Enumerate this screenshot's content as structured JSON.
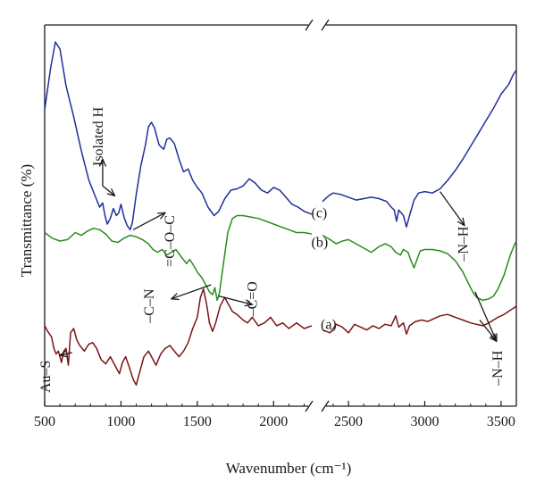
{
  "chart_data": {
    "type": "line",
    "title": "",
    "xlabel": "Wavenumber (cm⁻¹)",
    "ylabel": "Transmittance (%)",
    "xlim": [
      500,
      3600
    ],
    "axis_break": {
      "from": 2250,
      "to": 2330
    },
    "xticks": [
      500,
      1000,
      1500,
      2000,
      2500,
      3000,
      3500
    ],
    "yticks": [],
    "grid": false,
    "legend": "none",
    "series": [
      {
        "name": "(c)",
        "color": "#1f2f9a",
        "points": [
          [
            500,
            14.5
          ],
          [
            540,
            17.5
          ],
          [
            570,
            19.3
          ],
          [
            600,
            18.8
          ],
          [
            640,
            16.2
          ],
          [
            690,
            14.0
          ],
          [
            740,
            11.6
          ],
          [
            790,
            9.5
          ],
          [
            830,
            8.4
          ],
          [
            860,
            7.6
          ],
          [
            880,
            7.9
          ],
          [
            895,
            7.0
          ],
          [
            910,
            6.4
          ],
          [
            930,
            6.8
          ],
          [
            950,
            7.5
          ],
          [
            970,
            7.0
          ],
          [
            985,
            7.2
          ],
          [
            1000,
            7.8
          ],
          [
            1020,
            6.9
          ],
          [
            1040,
            6.3
          ],
          [
            1060,
            6.0
          ],
          [
            1075,
            6.5
          ],
          [
            1100,
            8.5
          ],
          [
            1130,
            10.5
          ],
          [
            1160,
            12.0
          ],
          [
            1180,
            13.3
          ],
          [
            1200,
            13.6
          ],
          [
            1220,
            13.2
          ],
          [
            1250,
            12.0
          ],
          [
            1280,
            11.7
          ],
          [
            1300,
            12.4
          ],
          [
            1320,
            12.5
          ],
          [
            1350,
            12.1
          ],
          [
            1380,
            11.0
          ],
          [
            1410,
            10.1
          ],
          [
            1440,
            10.3
          ],
          [
            1470,
            9.5
          ],
          [
            1500,
            9.0
          ],
          [
            1530,
            8.6
          ],
          [
            1570,
            7.6
          ],
          [
            1610,
            7.0
          ],
          [
            1640,
            7.3
          ],
          [
            1680,
            8.2
          ],
          [
            1720,
            8.8
          ],
          [
            1760,
            8.9
          ],
          [
            1800,
            9.1
          ],
          [
            1840,
            9.6
          ],
          [
            1880,
            9.3
          ],
          [
            1920,
            8.8
          ],
          [
            1960,
            8.6
          ],
          [
            2000,
            9.0
          ],
          [
            2040,
            8.8
          ],
          [
            2080,
            8.3
          ],
          [
            2120,
            7.8
          ],
          [
            2160,
            7.6
          ],
          [
            2200,
            7.3
          ],
          [
            2250,
            7.1
          ],
          [
            2330,
            8.0
          ],
          [
            2370,
            8.4
          ],
          [
            2400,
            8.6
          ],
          [
            2450,
            8.5
          ],
          [
            2500,
            8.3
          ],
          [
            2550,
            8.1
          ],
          [
            2600,
            8.2
          ],
          [
            2650,
            8.3
          ],
          [
            2700,
            8.2
          ],
          [
            2750,
            8.0
          ],
          [
            2780,
            7.6
          ],
          [
            2800,
            7.4
          ],
          [
            2815,
            6.6
          ],
          [
            2830,
            7.4
          ],
          [
            2860,
            7.0
          ],
          [
            2880,
            6.2
          ],
          [
            2900,
            7.0
          ],
          [
            2930,
            8.1
          ],
          [
            2960,
            8.6
          ],
          [
            3000,
            8.7
          ],
          [
            3050,
            8.6
          ],
          [
            3100,
            8.9
          ],
          [
            3150,
            9.5
          ],
          [
            3200,
            10.2
          ],
          [
            3250,
            11.0
          ],
          [
            3300,
            11.9
          ],
          [
            3350,
            12.8
          ],
          [
            3400,
            13.7
          ],
          [
            3450,
            14.6
          ],
          [
            3500,
            15.6
          ],
          [
            3550,
            16.3
          ],
          [
            3580,
            17.0
          ],
          [
            3600,
            17.3
          ]
        ]
      },
      {
        "name": "(b)",
        "color": "#2a8c1a",
        "points": [
          [
            500,
            5.8
          ],
          [
            550,
            5.4
          ],
          [
            600,
            5.2
          ],
          [
            650,
            5.3
          ],
          [
            700,
            5.8
          ],
          [
            740,
            5.6
          ],
          [
            780,
            5.9
          ],
          [
            820,
            6.1
          ],
          [
            860,
            6.0
          ],
          [
            900,
            5.7
          ],
          [
            940,
            5.2
          ],
          [
            980,
            5.1
          ],
          [
            1020,
            5.4
          ],
          [
            1060,
            5.6
          ],
          [
            1100,
            5.5
          ],
          [
            1140,
            5.3
          ],
          [
            1180,
            5.0
          ],
          [
            1210,
            4.6
          ],
          [
            1240,
            4.4
          ],
          [
            1270,
            4.6
          ],
          [
            1300,
            4.2
          ],
          [
            1330,
            4.4
          ],
          [
            1360,
            4.6
          ],
          [
            1400,
            4.0
          ],
          [
            1430,
            3.6
          ],
          [
            1450,
            3.9
          ],
          [
            1480,
            3.4
          ],
          [
            1500,
            3.0
          ],
          [
            1530,
            2.6
          ],
          [
            1560,
            2.0
          ],
          [
            1580,
            1.6
          ],
          [
            1600,
            1.4
          ],
          [
            1615,
            1.9
          ],
          [
            1630,
            1.0
          ],
          [
            1645,
            1.5
          ],
          [
            1670,
            3.5
          ],
          [
            1700,
            5.8
          ],
          [
            1730,
            6.8
          ],
          [
            1760,
            7.0
          ],
          [
            1800,
            7.0
          ],
          [
            1850,
            6.9
          ],
          [
            1900,
            6.8
          ],
          [
            1950,
            6.6
          ],
          [
            2000,
            6.4
          ],
          [
            2050,
            6.2
          ],
          [
            2100,
            6.0
          ],
          [
            2150,
            5.8
          ],
          [
            2200,
            5.8
          ],
          [
            2250,
            5.7
          ],
          [
            2330,
            5.6
          ],
          [
            2380,
            5.3
          ],
          [
            2420,
            5.0
          ],
          [
            2460,
            5.2
          ],
          [
            2500,
            5.3
          ],
          [
            2550,
            5.0
          ],
          [
            2600,
            4.7
          ],
          [
            2650,
            4.4
          ],
          [
            2700,
            4.8
          ],
          [
            2740,
            5.0
          ],
          [
            2780,
            4.8
          ],
          [
            2810,
            4.4
          ],
          [
            2840,
            4.2
          ],
          [
            2860,
            4.6
          ],
          [
            2890,
            4.4
          ],
          [
            2910,
            3.8
          ],
          [
            2930,
            3.3
          ],
          [
            2950,
            3.9
          ],
          [
            2970,
            4.5
          ],
          [
            3000,
            4.6
          ],
          [
            3050,
            4.6
          ],
          [
            3100,
            4.5
          ],
          [
            3150,
            4.3
          ],
          [
            3200,
            3.8
          ],
          [
            3250,
            3.0
          ],
          [
            3300,
            1.9
          ],
          [
            3320,
            1.5
          ],
          [
            3340,
            1.2
          ],
          [
            3380,
            1.0
          ],
          [
            3420,
            1.1
          ],
          [
            3450,
            1.3
          ],
          [
            3480,
            1.8
          ],
          [
            3520,
            2.8
          ],
          [
            3560,
            4.2
          ],
          [
            3590,
            5.0
          ],
          [
            3600,
            5.2
          ]
        ]
      },
      {
        "name": "(a)",
        "color": "#7a1414",
        "points": [
          [
            500,
            -0.8
          ],
          [
            520,
            -1.2
          ],
          [
            545,
            -1.6
          ],
          [
            560,
            -2.4
          ],
          [
            575,
            -2.8
          ],
          [
            590,
            -2.6
          ],
          [
            610,
            -3.4
          ],
          [
            625,
            -2.6
          ],
          [
            640,
            -2.4
          ],
          [
            655,
            -3.6
          ],
          [
            670,
            -1.3
          ],
          [
            690,
            -1.0
          ],
          [
            710,
            -1.8
          ],
          [
            730,
            -2.2
          ],
          [
            760,
            -2.6
          ],
          [
            790,
            -2.1
          ],
          [
            815,
            -2.0
          ],
          [
            840,
            -2.4
          ],
          [
            870,
            -3.2
          ],
          [
            900,
            -3.5
          ],
          [
            930,
            -3.0
          ],
          [
            960,
            -3.6
          ],
          [
            990,
            -4.2
          ],
          [
            1010,
            -3.4
          ],
          [
            1030,
            -3.0
          ],
          [
            1050,
            -3.6
          ],
          [
            1080,
            -4.6
          ],
          [
            1100,
            -5.0
          ],
          [
            1120,
            -4.2
          ],
          [
            1150,
            -3.0
          ],
          [
            1180,
            -2.6
          ],
          [
            1200,
            -3.0
          ],
          [
            1230,
            -3.6
          ],
          [
            1260,
            -2.8
          ],
          [
            1290,
            -2.4
          ],
          [
            1320,
            -2.2
          ],
          [
            1350,
            -2.6
          ],
          [
            1380,
            -3.0
          ],
          [
            1410,
            -2.6
          ],
          [
            1440,
            -2.0
          ],
          [
            1470,
            -1.0
          ],
          [
            1500,
            -0.2
          ],
          [
            1520,
            1.2
          ],
          [
            1540,
            1.8
          ],
          [
            1560,
            0.8
          ],
          [
            1580,
            -0.6
          ],
          [
            1600,
            -1.2
          ],
          [
            1620,
            -0.6
          ],
          [
            1650,
            0.6
          ],
          [
            1680,
            1.2
          ],
          [
            1700,
            0.8
          ],
          [
            1730,
            0.2
          ],
          [
            1760,
            0.0
          ],
          [
            1800,
            -0.4
          ],
          [
            1830,
            -0.6
          ],
          [
            1860,
            -0.2
          ],
          [
            1900,
            -0.8
          ],
          [
            1940,
            -0.6
          ],
          [
            1980,
            -0.2
          ],
          [
            2020,
            -0.8
          ],
          [
            2060,
            -0.6
          ],
          [
            2100,
            -1.0
          ],
          [
            2150,
            -0.6
          ],
          [
            2200,
            -1.0
          ],
          [
            2250,
            -0.8
          ],
          [
            2330,
            -1.1
          ],
          [
            2380,
            -1.3
          ],
          [
            2420,
            -0.7
          ],
          [
            2460,
            -0.9
          ],
          [
            2500,
            -1.3
          ],
          [
            2540,
            -0.7
          ],
          [
            2580,
            -0.9
          ],
          [
            2620,
            -1.1
          ],
          [
            2660,
            -0.8
          ],
          [
            2700,
            -1.0
          ],
          [
            2740,
            -0.7
          ],
          [
            2780,
            -0.8
          ],
          [
            2810,
            -0.1
          ],
          [
            2830,
            -0.9
          ],
          [
            2860,
            -0.6
          ],
          [
            2880,
            -1.4
          ],
          [
            2900,
            -0.8
          ],
          [
            2940,
            -0.5
          ],
          [
            2980,
            -0.4
          ],
          [
            3020,
            -0.5
          ],
          [
            3060,
            -0.3
          ],
          [
            3100,
            -0.1
          ],
          [
            3150,
            0.0
          ],
          [
            3200,
            -0.2
          ],
          [
            3250,
            -0.4
          ],
          [
            3300,
            -0.6
          ],
          [
            3340,
            -0.7
          ],
          [
            3380,
            -0.8
          ],
          [
            3420,
            -0.6
          ],
          [
            3450,
            -0.4
          ],
          [
            3480,
            -0.2
          ],
          [
            3520,
            0.0
          ],
          [
            3560,
            0.3
          ],
          [
            3590,
            0.5
          ],
          [
            3600,
            0.6
          ]
        ]
      }
    ],
    "curve_labels": [
      {
        "text": "(c)",
        "x": 2260,
        "y": 7.2
      },
      {
        "text": "(b)",
        "x": 2260,
        "y": 5.1
      },
      {
        "text": "(a)",
        "x": 2330,
        "y": -0.7
      }
    ],
    "annotations": [
      {
        "text": "Isolated H",
        "rotate": true,
        "x": 880,
        "y": 12.6,
        "arrow_from": [
          880,
          9.1
        ],
        "arrow_to": [
          880,
          11.0
        ],
        "arrow_alt_to": [
          960,
          8.4
        ]
      },
      {
        "text": "=C–O–C",
        "rotate": true,
        "x": 1350,
        "y": 5.2,
        "arrow_from": [
          1080,
          6.0
        ],
        "arrow_to": [
          1290,
          7.2
        ]
      },
      {
        "text": "–C–N",
        "rotate": true,
        "x": 1215,
        "y": 0.6,
        "arrow_from": [
          1590,
          2.1
        ],
        "arrow_to": [
          1330,
          1.1
        ]
      },
      {
        "text": "–C=O",
        "rotate": true,
        "x": 1890,
        "y": 1.1,
        "arrow_from": [
          1640,
          1.3
        ],
        "arrow_to": [
          1860,
          0.7
        ]
      },
      {
        "text": "–N–H",
        "rotate": true,
        "x": 3280,
        "y": 5.0,
        "arrow_from": [
          3100,
          8.7
        ],
        "arrow_to": [
          3260,
          6.3
        ]
      },
      {
        "text": "–N–H",
        "rotate": true,
        "x": 3505,
        "y": -3.8,
        "arrow_from": [
          3330,
          1.6
        ],
        "arrow_to": [
          3470,
          -1.9
        ],
        "arrow_alt_from": [
          3360,
          -0.4
        ]
      },
      {
        "text": "Au–S",
        "rotate": true,
        "x": 535,
        "y": -4.4,
        "arrow_from": [
          680,
          -2.7
        ],
        "arrow_to": [
          600,
          -2.9
        ]
      }
    ]
  },
  "colors": {
    "axis": "#1a1a1a",
    "background": "#ffffff"
  }
}
